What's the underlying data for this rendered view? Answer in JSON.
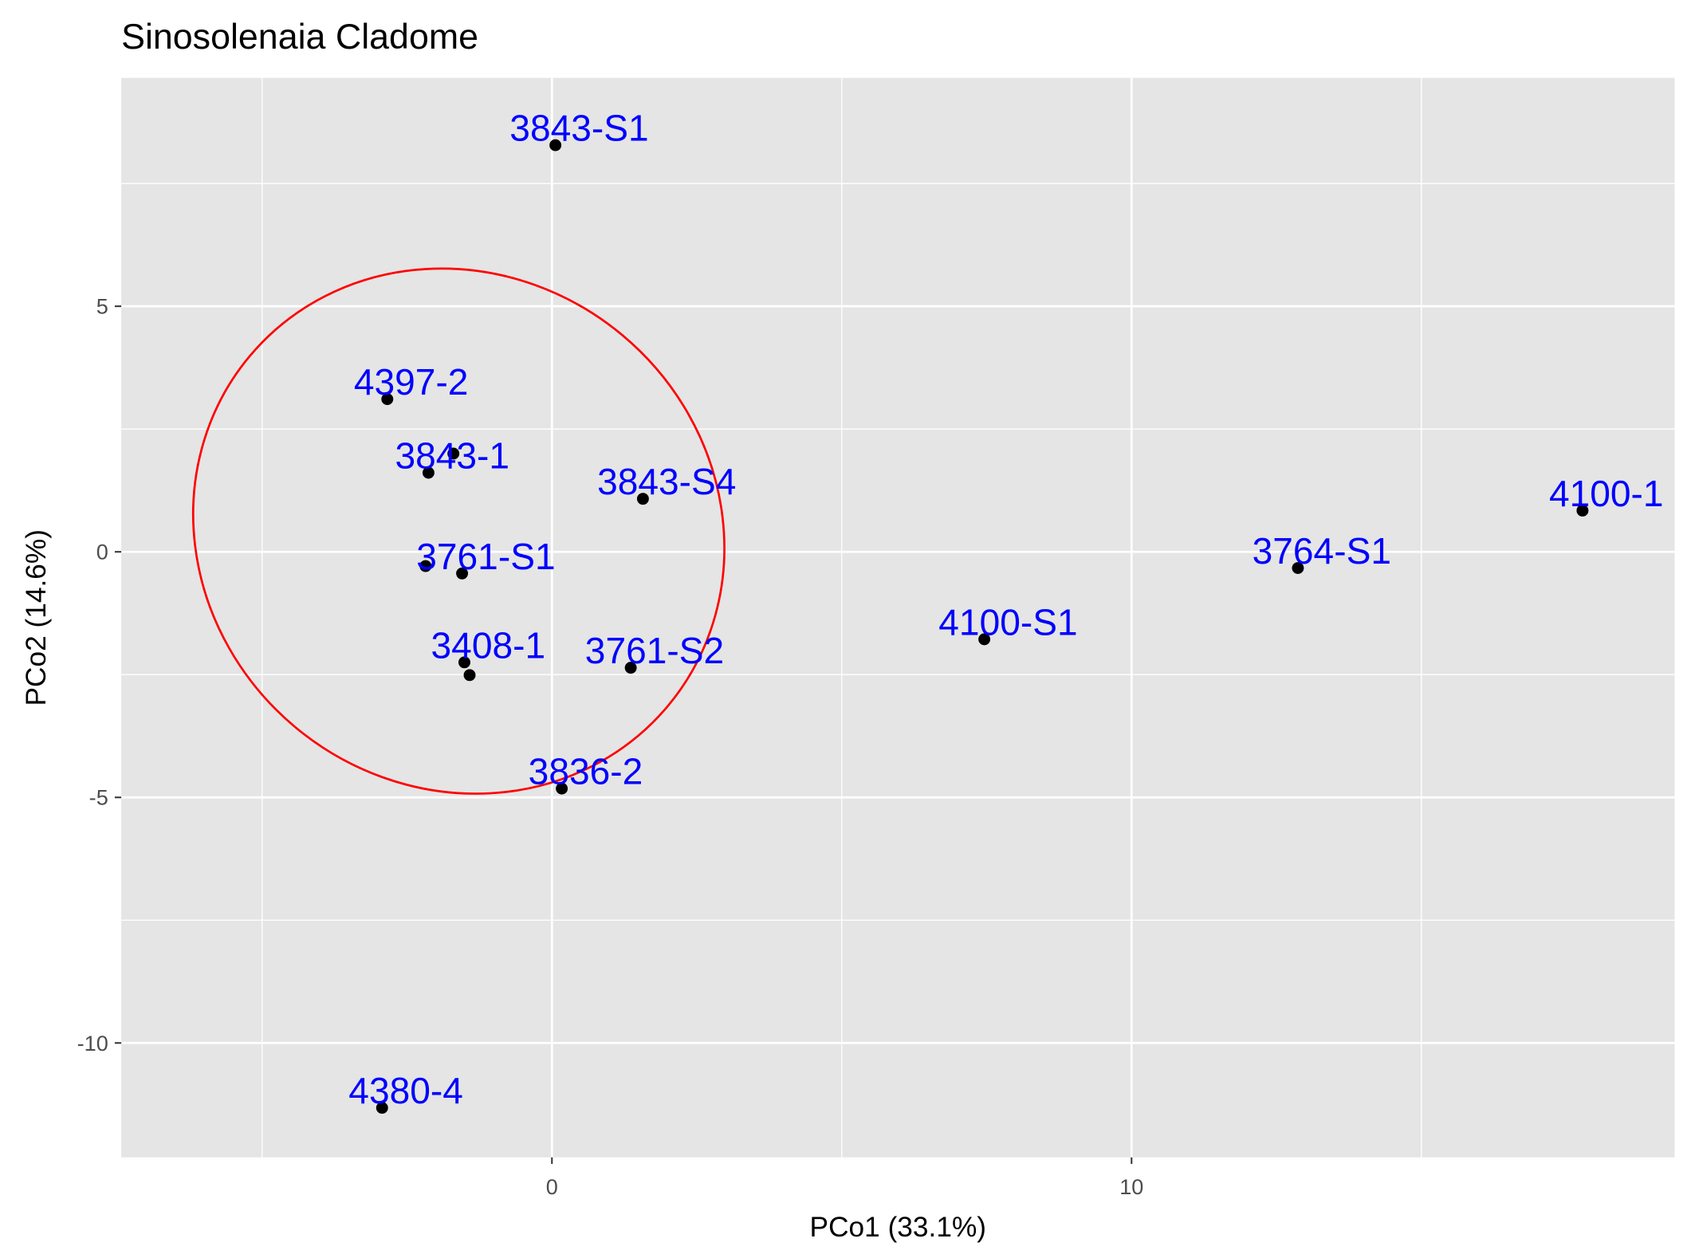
{
  "chart_data": {
    "type": "scatter",
    "title": "Sinosolenaia Cladome",
    "x_label": "PCo1 (33.1%)",
    "y_label": "PCo2 (14.6%)",
    "x": [
      0.06,
      -2.84,
      -2.13,
      -1.7,
      1.57,
      -1.55,
      -2.18,
      -1.51,
      -1.42,
      1.36,
      0.17,
      7.46,
      12.87,
      17.78,
      -2.93
    ],
    "y": [
      8.28,
      3.11,
      1.61,
      2.0,
      1.08,
      -0.44,
      -0.29,
      -2.25,
      -2.51,
      -2.36,
      -4.82,
      -1.78,
      -0.33,
      0.84,
      -11.32
    ],
    "labels": [
      "3843-S1",
      "4397-2",
      "3843-1",
      null,
      "3843-S4",
      "3761-S1",
      null,
      "3408-1",
      null,
      "3761-S2",
      "3836-2",
      "4100-S1",
      "3764-S1",
      "4100-1",
      "4380-4"
    ],
    "color": "#000000",
    "label_color": "#0000ff",
    "ellipse_color": "#ff0000",
    "xlim": [
      -7.43,
      19.37
    ],
    "ylim": [
      -12.33,
      9.65
    ],
    "xticks": [
      0,
      10
    ],
    "yticks": [
      5,
      0,
      -5,
      -10
    ],
    "minor_xticks": [
      -5,
      5,
      15
    ],
    "minor_yticks": [
      7.5,
      2.5,
      -2.5,
      -7.5
    ],
    "grid": true
  }
}
